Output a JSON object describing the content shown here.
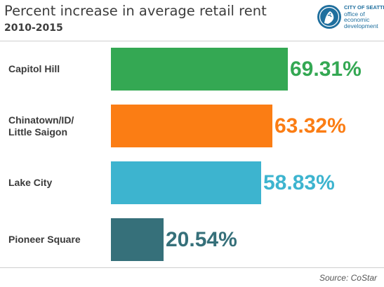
{
  "header": {
    "title": "Percent increase in average retail rent",
    "subtitle": "2010-2015"
  },
  "logo": {
    "line1": "CITY OF SEATTLE",
    "line2": "office of",
    "line3": "economic",
    "line4": "development",
    "icon": "city-of-seattle-seal",
    "color": "#1f6f9e"
  },
  "chart_data": {
    "type": "bar",
    "orientation": "horizontal",
    "title": "Percent increase in average retail rent",
    "subtitle": "2010-2015",
    "categories": [
      "Capitol Hill",
      "Chinatown/ID/\nLittle Saigon",
      "Lake City",
      "Pioneer Square"
    ],
    "values": [
      69.31,
      63.32,
      58.83,
      20.54
    ],
    "value_labels": [
      "69.31%",
      "63.32%",
      "58.83%",
      "20.54%"
    ],
    "colors": [
      "#34a853",
      "#fb7d14",
      "#3db4cf",
      "#36707a"
    ],
    "xlim": [
      0,
      69.31
    ],
    "grid": false,
    "legend": "none"
  },
  "footer": {
    "source": "Source: CoStar"
  }
}
